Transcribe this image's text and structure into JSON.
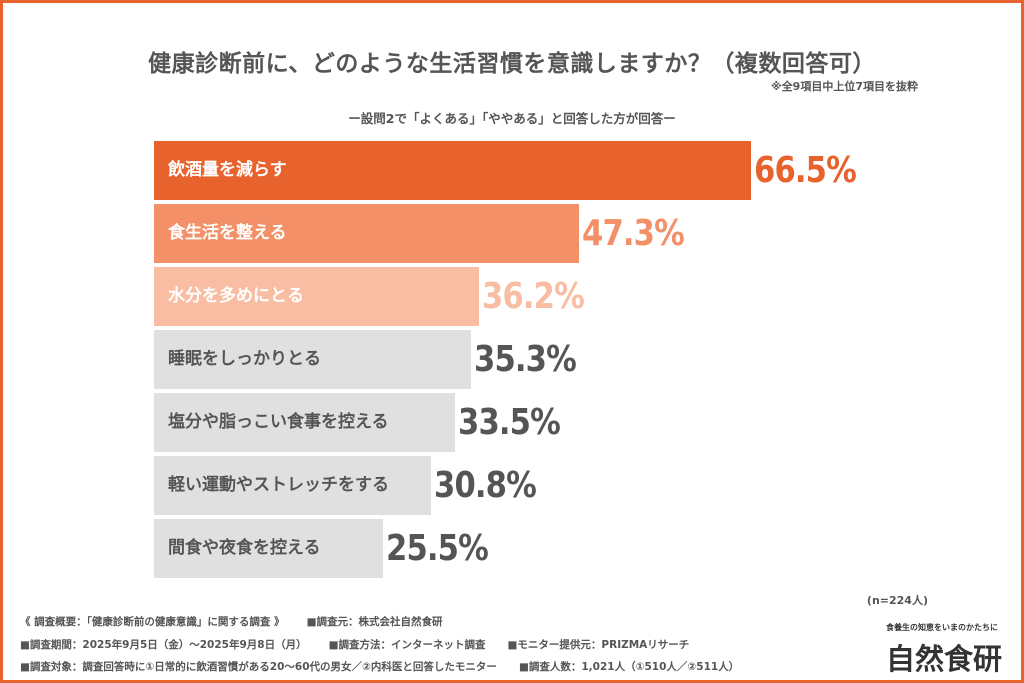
{
  "chart_data": {
    "type": "bar",
    "orientation": "horizontal",
    "title": "健康診断前に、どのような生活習慣を意識しますか？（複数回答可）",
    "note": "※全9項目中上位7項目を抜粋",
    "subtitle": "ー設問2で「よくある」「ややある」と回答した方が回答ー",
    "categories": [
      "飲酒量を減らす",
      "食生活を整える",
      "水分を多めにとる",
      "睡眠をしっかりとる",
      "塩分や脂っこい食事を控える",
      "軽い運動やストレッチをする",
      "間食や夜食を控える"
    ],
    "values": [
      66.5,
      47.3,
      36.2,
      35.3,
      33.5,
      30.8,
      25.5
    ],
    "value_labels": [
      "66.5%",
      "47.3%",
      "36.2%",
      "35.3%",
      "33.5%",
      "30.8%",
      "25.5%"
    ],
    "bar_colors": [
      "#e8622e",
      "#f39067",
      "#f8bda3",
      "#e0e0e0",
      "#e0e0e0",
      "#e0e0e0",
      "#e0e0e0"
    ],
    "label_colors": [
      "#ffffff",
      "#ffffff",
      "#ffffff",
      "#555555",
      "#555555",
      "#555555",
      "#555555"
    ],
    "value_colors": [
      "#e8622e",
      "#f39067",
      "#f8bda3",
      "#555555",
      "#555555",
      "#555555",
      "#555555"
    ],
    "unit": "%",
    "xlim": [
      0,
      100
    ],
    "grid": false,
    "sample": "(n=224人)"
  },
  "footer": {
    "rows": [
      [
        "《 調査概要：「健康診断前の健康意識」に関する調査 》",
        "■調査元：株式会社自然食研"
      ],
      [
        "■調査期間：2025年9月5日（金）～2025年9月8日（月）",
        "■調査方法：インターネット調査",
        "■モニター提供元：PRIZMAリサーチ"
      ],
      [
        "■調査対象：調査回答時に①日常的に飲酒習慣がある20～60代の男女／②内科医と回答したモニター",
        "■調査人数：1,021人（①510人／②511人）"
      ]
    ]
  },
  "logo": {
    "tagline": "食養生の知恵をいまのかたちに",
    "name": "自然食研"
  },
  "colors": {
    "accent": "#e8622e"
  }
}
